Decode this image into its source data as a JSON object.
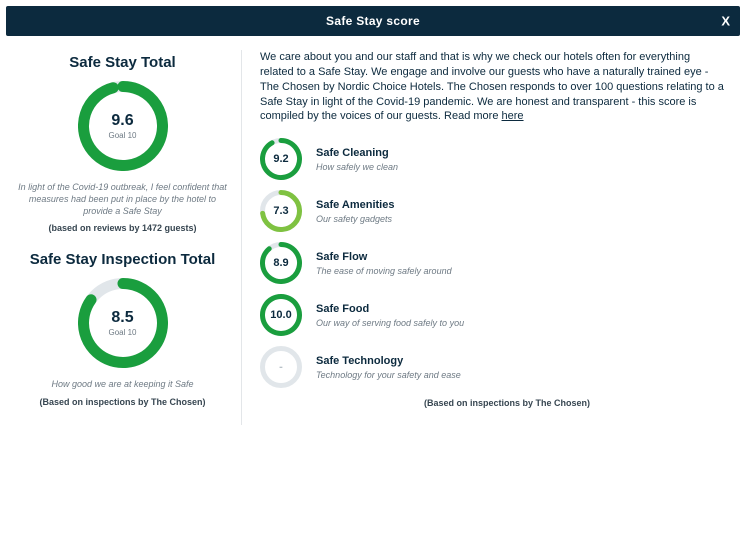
{
  "colors": {
    "header_bg": "#0c2a3e",
    "green_dark": "#1a9e3e",
    "green_light": "#7fc241",
    "track": "#e1e6ea",
    "text_dark": "#0c2a3e",
    "text_muted": "#6e7a84"
  },
  "header": {
    "title": "Safe Stay score",
    "close_label": "X"
  },
  "intro": {
    "text": "We care about you and our staff and that is why we check our hotels often for everything related to a Safe Stay. We engage and involve our guests who have a naturally trained eye - The Chosen by Nordic Choice Hotels. The Chosen responds to over 100 questions relating to a Safe Stay in light of the Covid-19 pandemic. We are honest and transparent - this score is compiled by the voices of our guests. Read more ",
    "link_label": "here"
  },
  "left": {
    "total": {
      "title": "Safe Stay Total",
      "value": 9.6,
      "value_label": "9.6",
      "goal_label": "Goal 10",
      "note": "In light of the Covid-19 outbreak, I feel confident that measures had been put in place by the hotel to provide a Safe Stay",
      "basis": "(based on reviews by 1472 guests)"
    },
    "inspection": {
      "title": "Safe Stay Inspection Total",
      "value": 8.5,
      "value_label": "8.5",
      "goal_label": "Goal 10",
      "note": "How good we are at keeping it Safe",
      "basis": "(Based on inspections by The Chosen)"
    }
  },
  "metrics": [
    {
      "title": "Safe Cleaning",
      "desc": "How safely we clean",
      "value": 9.2,
      "value_label": "9.2"
    },
    {
      "title": "Safe Amenities",
      "desc": "Our safety gadgets",
      "value": 7.3,
      "value_label": "7.3"
    },
    {
      "title": "Safe Flow",
      "desc": "The ease of moving safely around",
      "value": 8.9,
      "value_label": "8.9"
    },
    {
      "title": "Safe Food",
      "desc": "Our way of serving food safely to you",
      "value": 10.0,
      "value_label": "10.0"
    },
    {
      "title": "Safe Technology",
      "desc": "Technology for your safety and ease",
      "value": null,
      "value_label": "-"
    }
  ],
  "right_footer": "(Based on inspections by The Chosen)",
  "ring": {
    "max": 10,
    "stroke_big": 11,
    "stroke_sm": 5
  }
}
